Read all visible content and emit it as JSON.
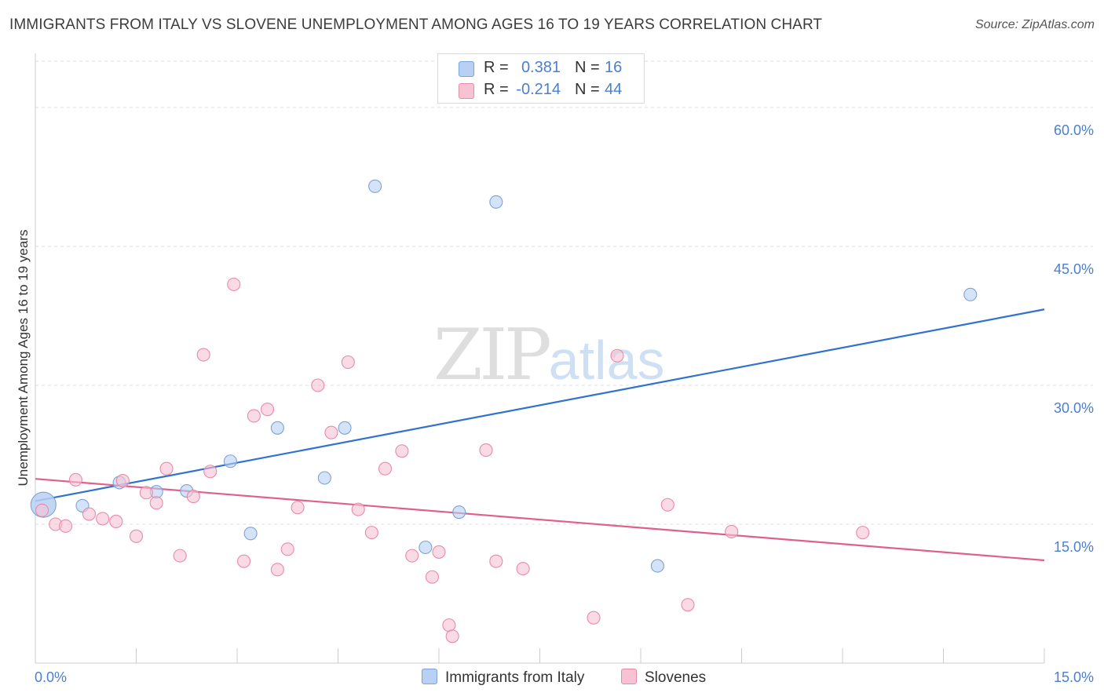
{
  "header": {
    "title": "IMMIGRANTS FROM ITALY VS SLOVENE UNEMPLOYMENT AMONG AGES 16 TO 19 YEARS CORRELATION CHART",
    "source": "Source: ZipAtlas.com"
  },
  "watermark": {
    "zip": "ZIP",
    "atlas": "atlas"
  },
  "legend": {
    "rows": [
      {
        "r_label": "R =",
        "r_value": "0.381",
        "n_label": "N =",
        "n_value": "16",
        "color": "#b8d0f3"
      },
      {
        "r_label": "R =",
        "r_value": "-0.214",
        "n_label": "N =",
        "n_value": "44",
        "color": "#f7c3d3"
      }
    ]
  },
  "bottom_legend": {
    "italy": "Immigrants from Italy",
    "slovenes": "Slovenes"
  },
  "chart_data": {
    "type": "scatter",
    "title": "IMMIGRANTS FROM ITALY VS SLOVENE UNEMPLOYMENT AMONG AGES 16 TO 19 YEARS CORRELATION CHART",
    "xlabel": "",
    "ylabel": "Unemployment Among Ages 16 to 19 years",
    "xlim": [
      0,
      15
    ],
    "ylim": [
      0,
      65
    ],
    "x_tick_labels": [
      "0.0%",
      "15.0%"
    ],
    "y_ticks": [
      15,
      30,
      45,
      60
    ],
    "y_tick_labels": [
      "15.0%",
      "30.0%",
      "45.0%",
      "60.0%"
    ],
    "grid": true,
    "legend_position": "top-center",
    "series": [
      {
        "name": "Immigrants from Italy",
        "color": "#b8d0f3",
        "stroke": "#7aa3db",
        "line_color": "#2f72d0",
        "trend": [
          [
            0,
            17.5
          ],
          [
            15,
            38.2
          ]
        ],
        "points": [
          [
            0.12,
            17.1
          ],
          [
            0.7,
            17.0
          ],
          [
            1.25,
            19.5
          ],
          [
            1.8,
            18.5
          ],
          [
            2.25,
            18.6
          ],
          [
            2.9,
            21.8
          ],
          [
            3.2,
            14.0
          ],
          [
            3.6,
            25.4
          ],
          [
            4.3,
            20.0
          ],
          [
            4.6,
            25.4
          ],
          [
            5.05,
            51.5
          ],
          [
            5.8,
            12.5
          ],
          [
            6.3,
            16.3
          ],
          [
            6.85,
            49.8
          ],
          [
            9.25,
            10.5
          ],
          [
            13.9,
            39.8
          ]
        ]
      },
      {
        "name": "Slovenes",
        "color": "#f7c3d3",
        "stroke": "#e88aa8",
        "line_color": "#e0608c",
        "trend": [
          [
            0,
            19.9
          ],
          [
            15,
            11.1
          ]
        ],
        "points": [
          [
            0.1,
            16.5
          ],
          [
            0.3,
            15.0
          ],
          [
            0.45,
            14.8
          ],
          [
            0.6,
            19.8
          ],
          [
            0.8,
            16.1
          ],
          [
            1.0,
            15.6
          ],
          [
            1.2,
            15.3
          ],
          [
            1.3,
            19.7
          ],
          [
            1.5,
            13.7
          ],
          [
            1.65,
            18.4
          ],
          [
            1.8,
            17.3
          ],
          [
            1.95,
            21.0
          ],
          [
            2.15,
            11.6
          ],
          [
            2.35,
            18.0
          ],
          [
            2.5,
            33.3
          ],
          [
            2.6,
            20.7
          ],
          [
            2.95,
            40.9
          ],
          [
            3.1,
            11.0
          ],
          [
            3.25,
            26.7
          ],
          [
            3.45,
            27.4
          ],
          [
            3.6,
            10.1
          ],
          [
            3.75,
            12.3
          ],
          [
            3.9,
            16.8
          ],
          [
            4.2,
            30.0
          ],
          [
            4.4,
            24.9
          ],
          [
            4.65,
            32.5
          ],
          [
            4.8,
            16.6
          ],
          [
            5.0,
            14.1
          ],
          [
            5.2,
            21.0
          ],
          [
            5.45,
            22.9
          ],
          [
            5.6,
            11.6
          ],
          [
            5.9,
            9.3
          ],
          [
            6.0,
            12.0
          ],
          [
            6.15,
            4.1
          ],
          [
            6.2,
            2.9
          ],
          [
            6.7,
            23.0
          ],
          [
            6.85,
            11.0
          ],
          [
            7.25,
            10.2
          ],
          [
            8.3,
            4.9
          ],
          [
            8.65,
            33.2
          ],
          [
            9.4,
            17.1
          ],
          [
            9.7,
            6.3
          ],
          [
            10.35,
            14.2
          ],
          [
            12.3,
            14.1
          ]
        ]
      }
    ]
  }
}
